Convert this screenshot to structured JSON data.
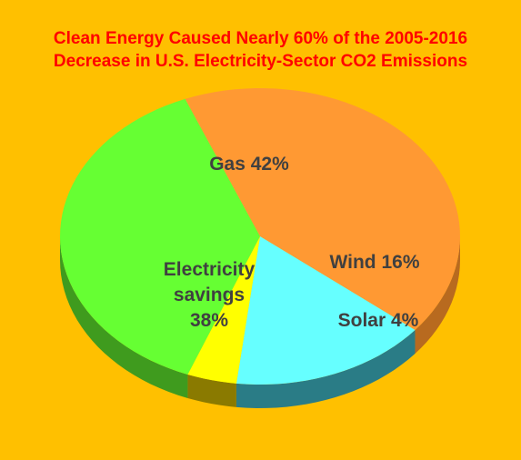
{
  "chart_data": {
    "type": "pie",
    "title": [
      "Clean Energy Caused Nearly 60% of the 2005-2016",
      "Decrease in U.S. Electricity-Sector CO2 Emissions"
    ],
    "slices": [
      {
        "label": "Gas 42%",
        "label_lines": [
          "Gas 42%"
        ],
        "value": 42,
        "color": "#FF9933",
        "side_color": "#B86A1F"
      },
      {
        "label": "Wind 16%",
        "label_lines": [
          "Wind 16%"
        ],
        "value": 16,
        "color": "#66FFFF",
        "side_color": "#2A7C86"
      },
      {
        "label": "Solar 4%",
        "label_lines": [
          "Solar 4%"
        ],
        "value": 4,
        "color": "#FFFF00",
        "side_color": "#8A7A00"
      },
      {
        "label": "Electricity savings 38%",
        "label_lines": [
          "Electricity",
          "savings",
          "38%"
        ],
        "value": 38,
        "color": "#66FF33",
        "side_color": "#3F9B1E"
      }
    ],
    "legend": "none",
    "style": "3d-pie"
  }
}
